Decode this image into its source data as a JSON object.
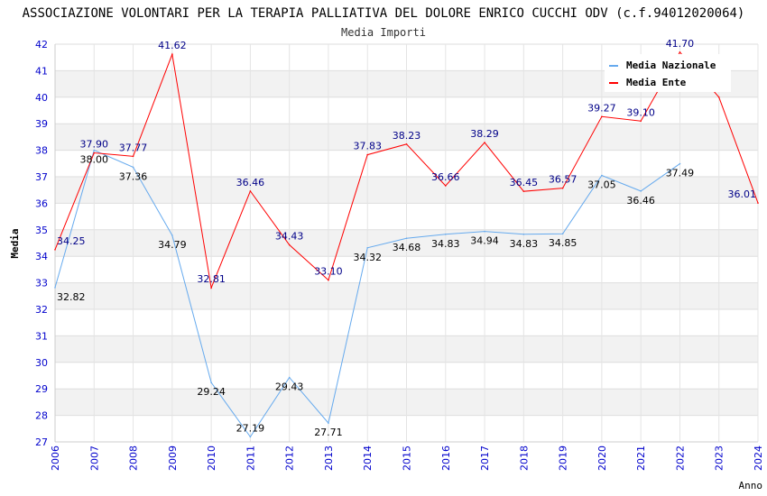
{
  "chart_data": {
    "type": "line",
    "title": "ASSOCIAZIONE VOLONTARI PER LA TERAPIA PALLIATIVA DEL DOLORE ENRICO CUCCHI ODV (c.f.94012020064)",
    "subtitle": "Media Importi",
    "xlabel": "Anno",
    "ylabel": "Media",
    "ylim": [
      27,
      42
    ],
    "xlim": [
      2006,
      2024
    ],
    "yticks": [
      "27",
      "28",
      "29",
      "30",
      "31",
      "32",
      "33",
      "34",
      "35",
      "36",
      "37",
      "38",
      "39",
      "40",
      "41",
      "42"
    ],
    "xticks": [
      "2006",
      "2007",
      "2008",
      "2009",
      "2010",
      "2011",
      "2012",
      "2013",
      "2014",
      "2015",
      "2016",
      "2017",
      "2018",
      "2019",
      "2020",
      "2021",
      "2022",
      "2023",
      "2024"
    ],
    "legend_position": "top-right",
    "series": [
      {
        "name": "Media Nazionale",
        "color": "#66aaee",
        "label_color": "#000000",
        "x": [
          2006,
          2007,
          2008,
          2009,
          2010,
          2011,
          2012,
          2013,
          2014,
          2015,
          2016,
          2017,
          2018,
          2019,
          2020,
          2021,
          2022
        ],
        "values": [
          32.82,
          38.0,
          37.36,
          34.79,
          29.24,
          27.19,
          29.43,
          27.71,
          34.32,
          34.68,
          34.83,
          34.94,
          34.83,
          34.85,
          37.05,
          36.46,
          37.49
        ],
        "labels": [
          "32.82",
          "38.00",
          "37.36",
          "34.79",
          "29.24",
          "27.19",
          "29.43",
          "27.71",
          "34.32",
          "34.68",
          "34.83",
          "34.94",
          "34.83",
          "34.85",
          "37.05",
          "36.46",
          "37.49"
        ]
      },
      {
        "name": "Media Ente",
        "color": "#ff0000",
        "label_color": "#000088",
        "x": [
          2006,
          2007,
          2008,
          2009,
          2010,
          2011,
          2012,
          2013,
          2014,
          2015,
          2016,
          2017,
          2018,
          2019,
          2020,
          2021,
          2022,
          2023,
          2024
        ],
        "values": [
          34.25,
          37.9,
          37.77,
          41.62,
          32.81,
          36.46,
          34.43,
          33.1,
          37.83,
          38.23,
          36.66,
          38.29,
          36.45,
          36.57,
          39.27,
          39.1,
          41.7,
          40.0,
          36.01
        ],
        "labels": [
          "34.25",
          "37.90",
          "37.77",
          "41.62",
          "32.81",
          "36.46",
          "34.43",
          "33.10",
          "37.83",
          "38.23",
          "36.66",
          "38.29",
          "36.45",
          "36.57",
          "39.27",
          "39.10",
          "41.70",
          "",
          "36.01"
        ]
      }
    ]
  }
}
